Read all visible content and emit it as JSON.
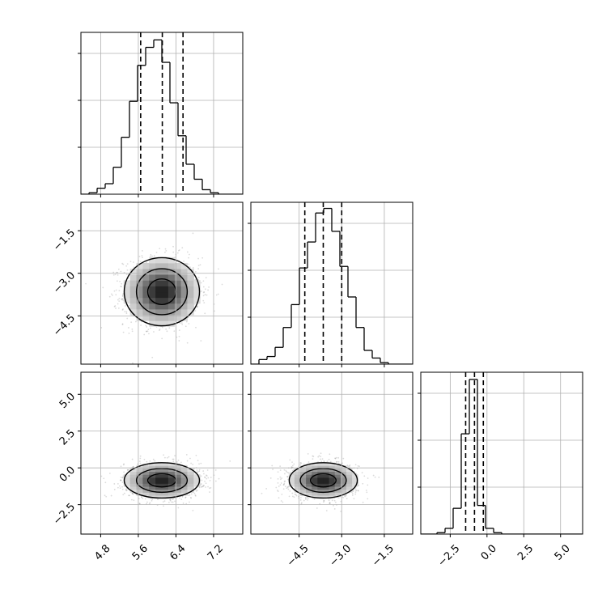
{
  "chart_data": {
    "type": "corner",
    "parameters": [
      {
        "name": "",
        "lim": [
          4.38,
          7.82
        ],
        "ticks": [
          4.8,
          5.6,
          6.4,
          7.2
        ],
        "tick_labels": [
          "4.8",
          "5.6",
          "6.4",
          "7.2"
        ]
      },
      {
        "name": "",
        "lim": [
          -6.2,
          -0.5
        ],
        "ticks": [
          -4.5,
          -3.0,
          -1.5
        ],
        "tick_labels": [
          "−4.5",
          "−3.0",
          "−1.5"
        ]
      },
      {
        "name": "",
        "lim": [
          -4.5,
          6.5
        ],
        "ticks": [
          -2.5,
          0.0,
          2.5,
          5.0
        ],
        "tick_labels": [
          "−2.5",
          "0.0",
          "2.5",
          "5.0"
        ]
      }
    ],
    "histograms": [
      {
        "bin_edges": [
          4.38,
          4.552,
          4.724,
          4.896,
          5.068,
          5.24,
          5.412,
          5.584,
          5.756,
          5.928,
          6.1,
          6.272,
          6.444,
          6.616,
          6.788,
          6.96,
          7.132,
          7.304,
          7.476,
          7.648,
          7.82
        ],
        "counts": [
          0,
          1,
          4,
          7,
          18,
          38,
          62,
          86,
          98,
          103,
          88,
          61,
          39,
          20,
          10,
          3,
          1,
          0,
          0,
          0
        ],
        "quantiles": [
          5.65,
          6.11,
          6.55
        ],
        "ylim": [
          0,
          108
        ]
      },
      {
        "bin_edges": [
          -6.2,
          -5.915,
          -5.63,
          -5.345,
          -5.06,
          -4.775,
          -4.49,
          -4.205,
          -3.92,
          -3.635,
          -3.35,
          -3.065,
          -2.78,
          -2.495,
          -2.21,
          -1.925,
          -1.64,
          -1.355,
          -1.07,
          -0.785,
          -0.5
        ],
        "counts": [
          0,
          3,
          5,
          11,
          24,
          39,
          63,
          80,
          99,
          102,
          87,
          64,
          44,
          24,
          9,
          4,
          1,
          0,
          0,
          0
        ],
        "quantiles": [
          -4.3,
          -3.65,
          -3.0
        ],
        "ylim": [
          0,
          106
        ]
      },
      {
        "bin_edges": [
          -4.5,
          -3.95,
          -3.4,
          -2.85,
          -2.3,
          -1.75,
          -1.2,
          -0.65,
          -0.1,
          0.45,
          1.0,
          1.55,
          2.05,
          2.6,
          3.15,
          3.7,
          4.25,
          4.8,
          5.35,
          5.9,
          6.5
        ],
        "counts": [
          0,
          0,
          1,
          4,
          18,
          70,
          108,
          20,
          4,
          1,
          0,
          0,
          0,
          0,
          0,
          0,
          0,
          0,
          0,
          0
        ],
        "quantiles": [
          -1.45,
          -0.85,
          -0.25
        ],
        "ylim": [
          0,
          113
        ]
      }
    ],
    "pairs": [
      {
        "x": 0,
        "y": 1,
        "mean": [
          6.1,
          -3.65
        ],
        "sd": [
          0.4,
          0.6
        ],
        "n_points": 1500
      },
      {
        "x": 0,
        "y": 2,
        "mean": [
          6.1,
          -0.85
        ],
        "sd": [
          0.4,
          0.6
        ],
        "n_points": 1400
      },
      {
        "x": 1,
        "y": 2,
        "mean": [
          -3.65,
          -0.85
        ],
        "sd": [
          0.6,
          0.6
        ],
        "n_points": 1400
      }
    ],
    "grid": true,
    "contour_levels": 3,
    "quantile_line_style": "dashed"
  }
}
